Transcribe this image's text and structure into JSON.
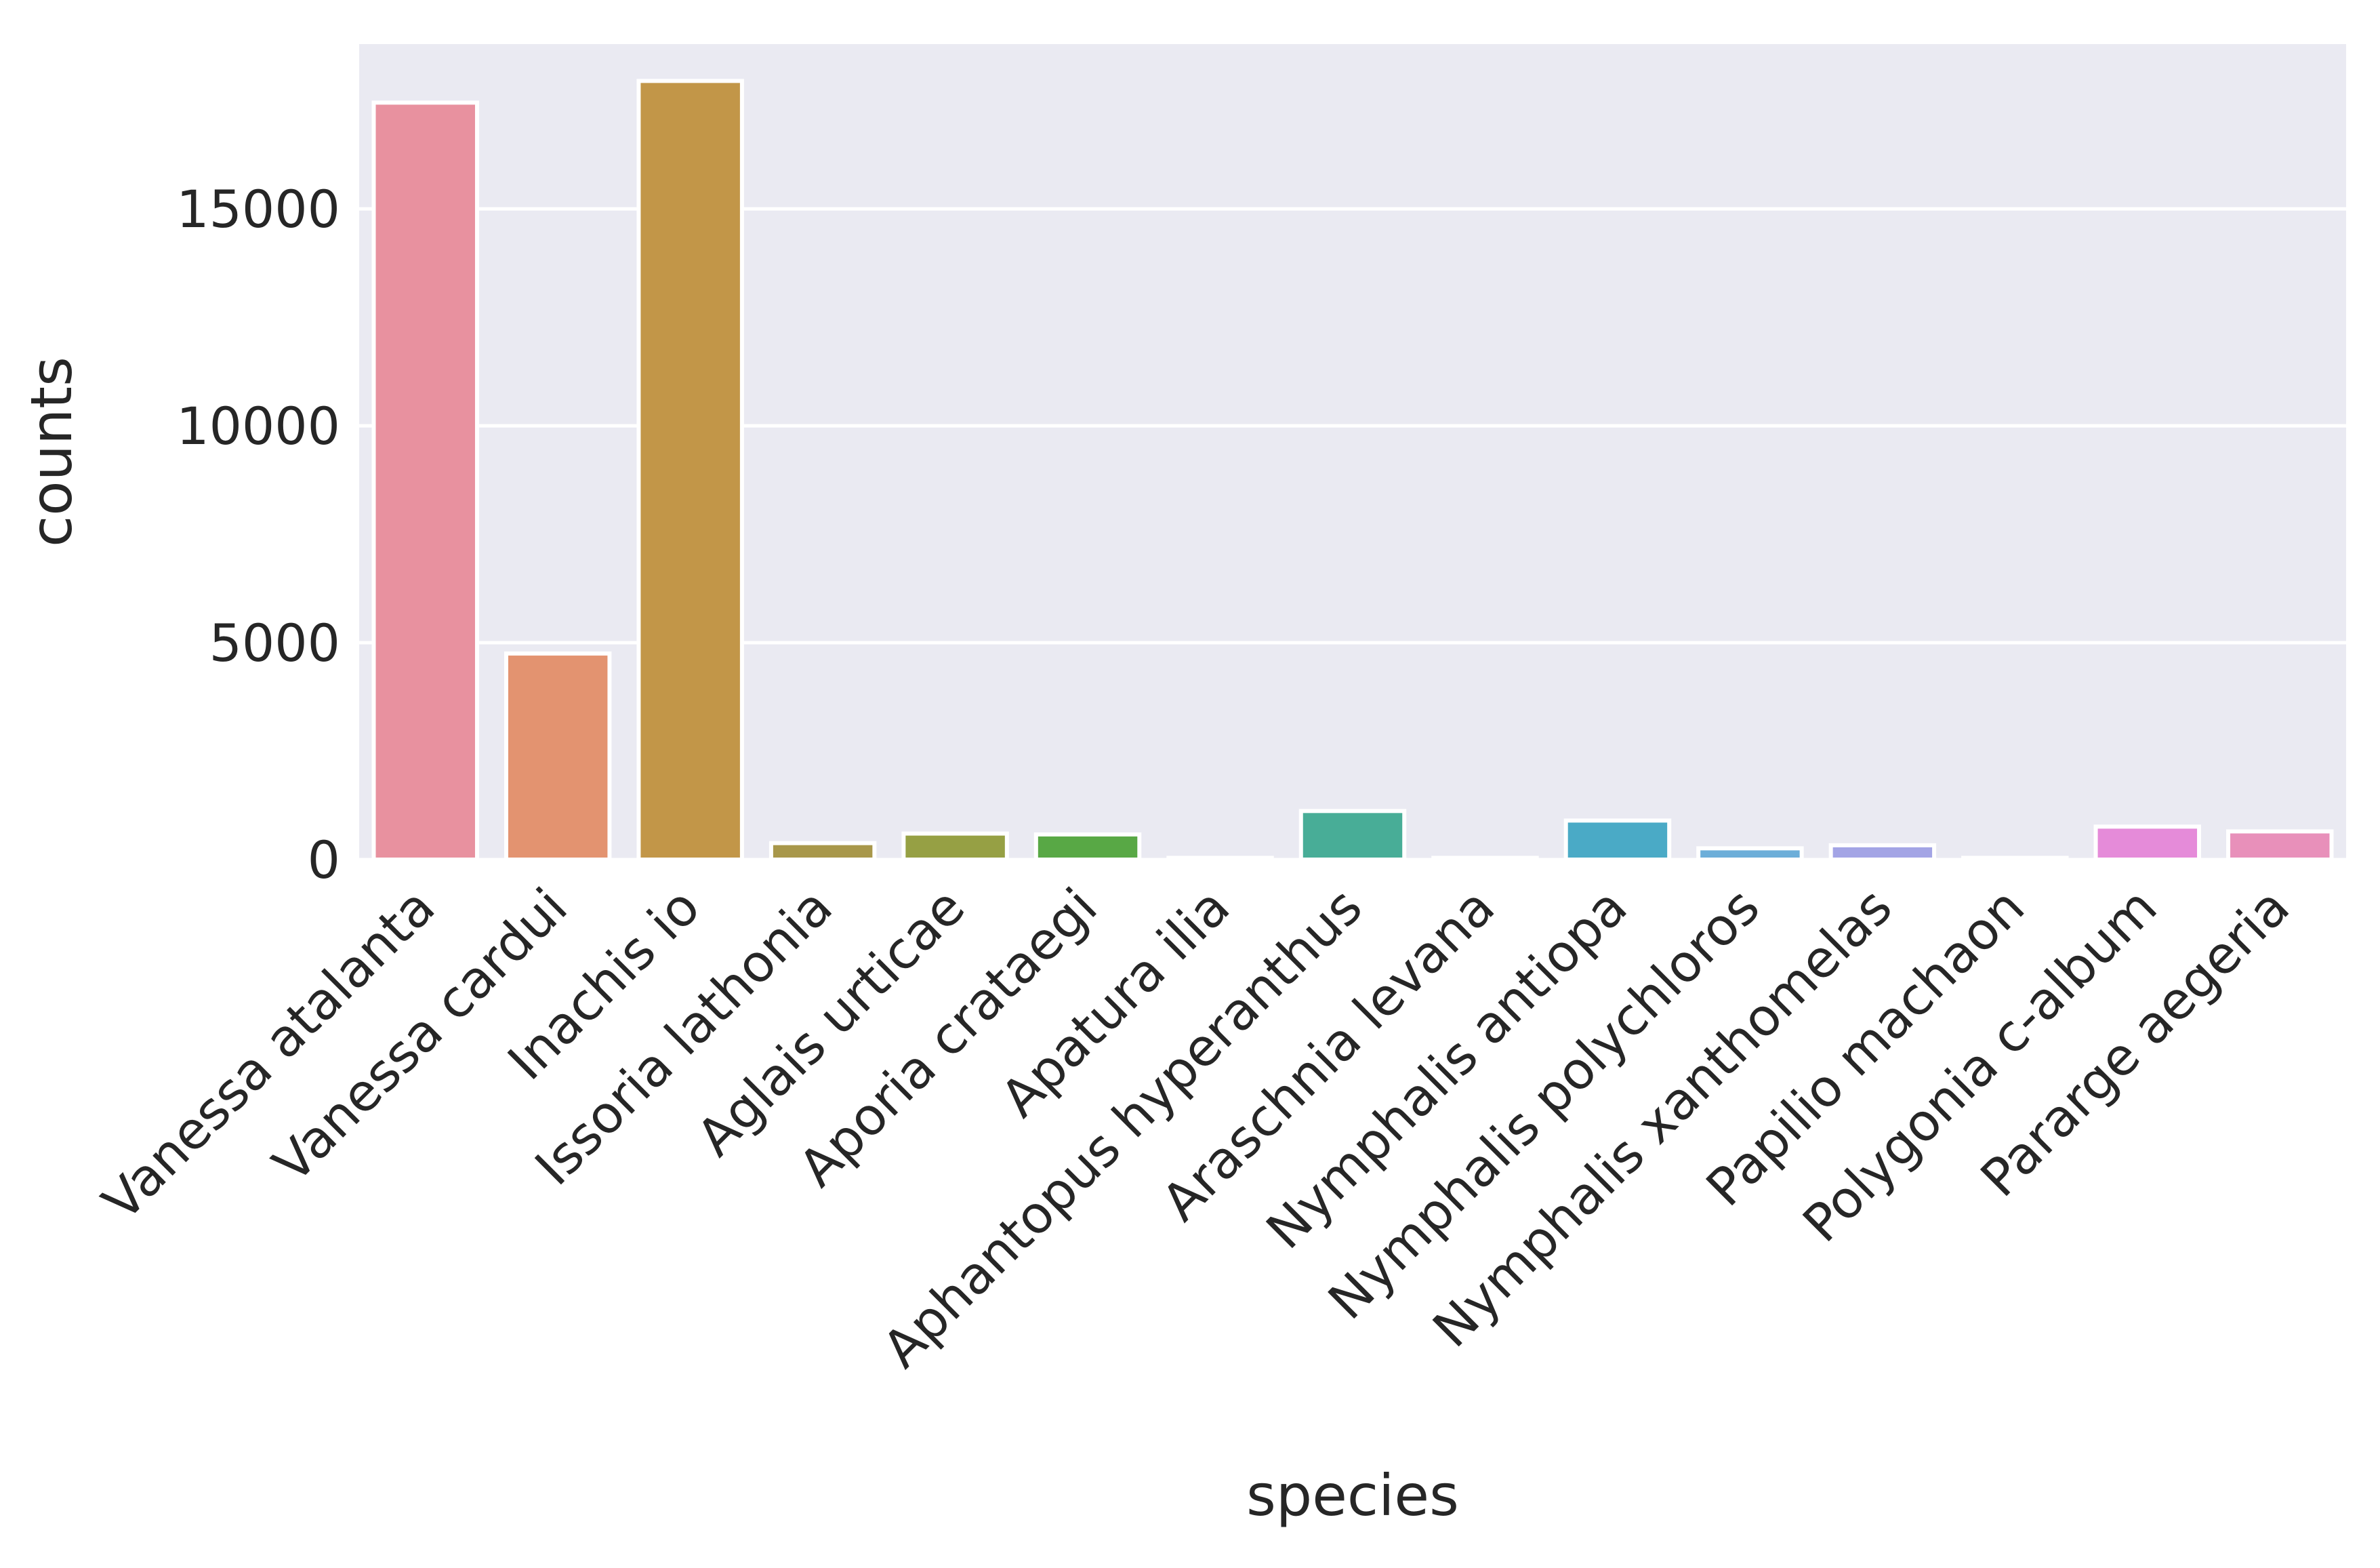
{
  "chart_data": {
    "type": "bar",
    "xlabel": "species",
    "ylabel": "counts",
    "ylim": [
      0,
      18800
    ],
    "yticks": [
      0,
      5000,
      10000,
      15000
    ],
    "grid": true,
    "legend": "none",
    "background": "#eaeaf2",
    "categories": [
      "Vanessa atalanta",
      "Vanessa cardui",
      "Inachis io",
      "Issoria lathonia",
      "Aglais urticae",
      "Aporia crataegi",
      "Apatura ilia",
      "Aphantopus hyperanthus",
      "Araschnia levana",
      "Nymphalis antiopa",
      "Nymphalis polychloros",
      "Nymphalis xanthomelas",
      "Papilio machaon",
      "Polygonia c-album",
      "Pararge aegeria"
    ],
    "values": [
      17450,
      4750,
      17950,
      380,
      600,
      580,
      40,
      1120,
      40,
      900,
      260,
      330,
      40,
      760,
      650
    ],
    "colors": [
      "#e8919f",
      "#e39370",
      "#c29648",
      "#a8974a",
      "#96a044",
      "#58a845",
      "#4fab7c",
      "#48ad97",
      "#49aaa6",
      "#4aaac6",
      "#6caed9",
      "#a3a4e5",
      "#cf95e4",
      "#e58bd9",
      "#e890ba"
    ]
  }
}
